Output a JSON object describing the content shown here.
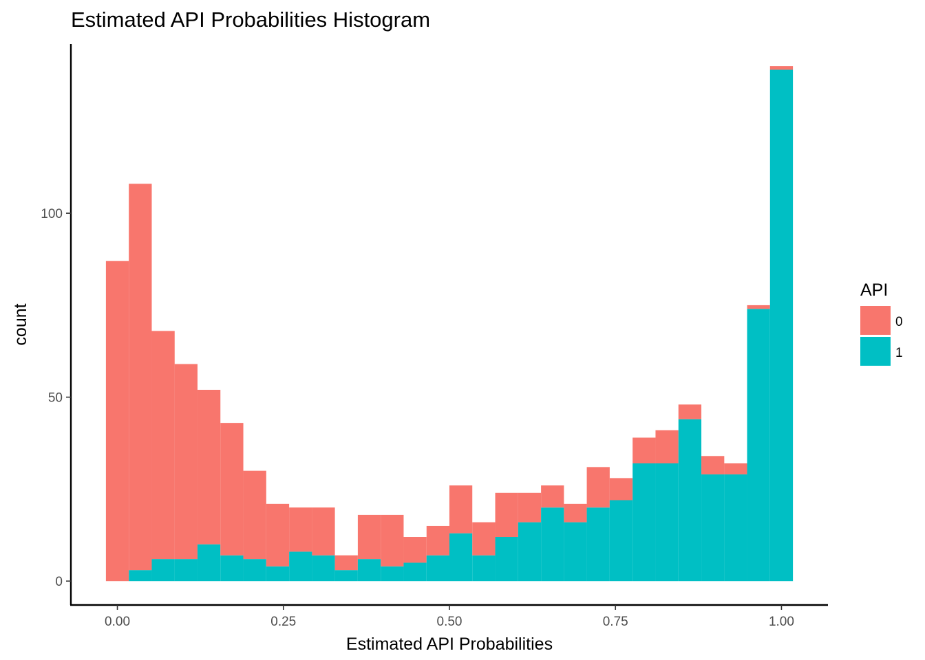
{
  "chart_data": {
    "type": "bar",
    "subtype": "stacked-histogram",
    "title": "Estimated API Probabilities Histogram",
    "xlabel": "Estimated API Probabilities",
    "ylabel": "count",
    "xlim": [
      -0.07,
      1.07
    ],
    "ylim": [
      -6.5,
      146
    ],
    "x_ticks": [
      {
        "value": 0,
        "label": "0.00"
      },
      {
        "value": 0.25,
        "label": "0.25"
      },
      {
        "value": 0.5,
        "label": "0.50"
      },
      {
        "value": 0.75,
        "label": "0.75"
      },
      {
        "value": 1,
        "label": "1.00"
      }
    ],
    "y_ticks": [
      {
        "value": 0,
        "label": "0"
      },
      {
        "value": 50,
        "label": "50"
      },
      {
        "value": 100,
        "label": "100"
      }
    ],
    "grid": false,
    "legend": {
      "title": "API",
      "position": "right",
      "items": [
        {
          "label": "0",
          "color": "#F8766D"
        },
        {
          "label": "1",
          "color": "#00BFC4"
        }
      ]
    },
    "bin_width": 0.0345,
    "bin_centers": [
      0.0,
      0.0345,
      0.069,
      0.1034,
      0.1379,
      0.1724,
      0.2069,
      0.2414,
      0.2759,
      0.3103,
      0.3448,
      0.3793,
      0.4138,
      0.4483,
      0.4828,
      0.5172,
      0.5517,
      0.5862,
      0.6207,
      0.6552,
      0.6897,
      0.7241,
      0.7586,
      0.7931,
      0.8276,
      0.8621,
      0.8966,
      0.931,
      0.9655,
      1.0
    ],
    "series": [
      {
        "name": "0",
        "color": "#F8766D",
        "values": [
          87,
          105,
          62,
          53,
          42,
          36,
          24,
          17,
          12,
          13,
          4,
          12,
          14,
          7,
          8,
          13,
          9,
          12,
          8,
          6,
          5,
          11,
          6,
          7,
          9,
          4,
          5,
          3,
          1,
          1
        ]
      },
      {
        "name": "1",
        "color": "#00BFC4",
        "values": [
          0,
          3,
          6,
          6,
          10,
          7,
          6,
          4,
          8,
          7,
          3,
          6,
          4,
          5,
          7,
          13,
          7,
          12,
          16,
          20,
          16,
          20,
          22,
          32,
          32,
          44,
          29,
          29,
          74,
          139
        ]
      }
    ]
  }
}
